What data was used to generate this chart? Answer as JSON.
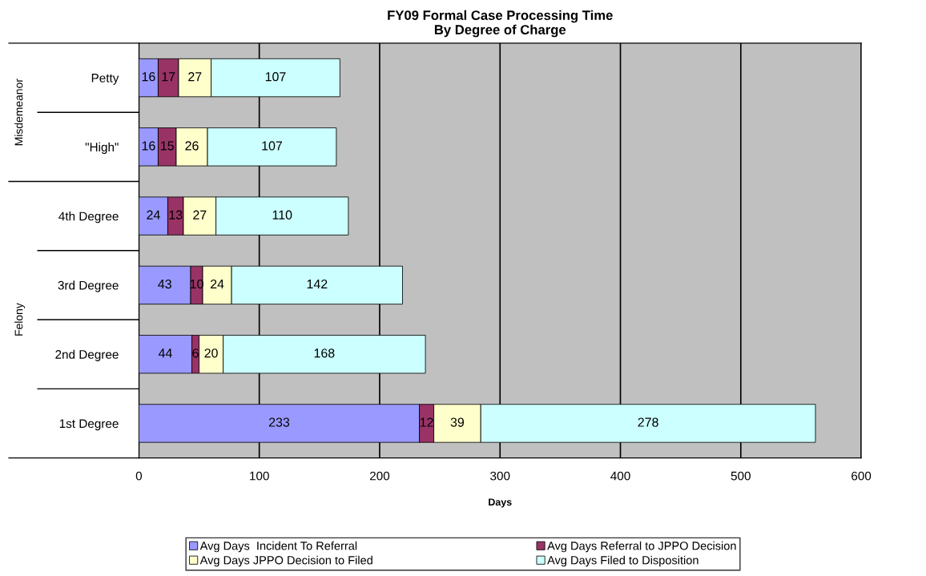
{
  "chart_data": {
    "type": "bar",
    "orientation": "horizontal",
    "stacked": true,
    "title": "FY09 Formal Case Processing Time\nBy Degree of Charge",
    "xlabel": "Days",
    "categories": [
      "Petty",
      "\"High\"",
      "4th Degree",
      "3rd Degree",
      "2nd Degree",
      "1st Degree"
    ],
    "series": [
      {
        "name": "Avg Days  Incident To Referral",
        "color": "#9999ff",
        "values": [
          16,
          16,
          24,
          43,
          44,
          233
        ]
      },
      {
        "name": "Avg Days Referral to JPPO Decision",
        "color": "#993366",
        "values": [
          17,
          15,
          13,
          10,
          6,
          12
        ]
      },
      {
        "name": "Avg Days JPPO Decision to Filed",
        "color": "#ffffcc",
        "values": [
          27,
          26,
          27,
          24,
          20,
          39
        ]
      },
      {
        "name": "Avg Days Filed to Disposition",
        "color": "#ccffff",
        "values": [
          107,
          107,
          110,
          142,
          168,
          278
        ]
      }
    ],
    "xlim": [
      0,
      600
    ],
    "xticks": [
      0,
      100,
      200,
      300,
      400,
      500,
      600
    ],
    "grid": "x",
    "legend": "bottom",
    "data_labels": true,
    "annotations": [
      "Misdemeanor",
      "Felony"
    ]
  }
}
